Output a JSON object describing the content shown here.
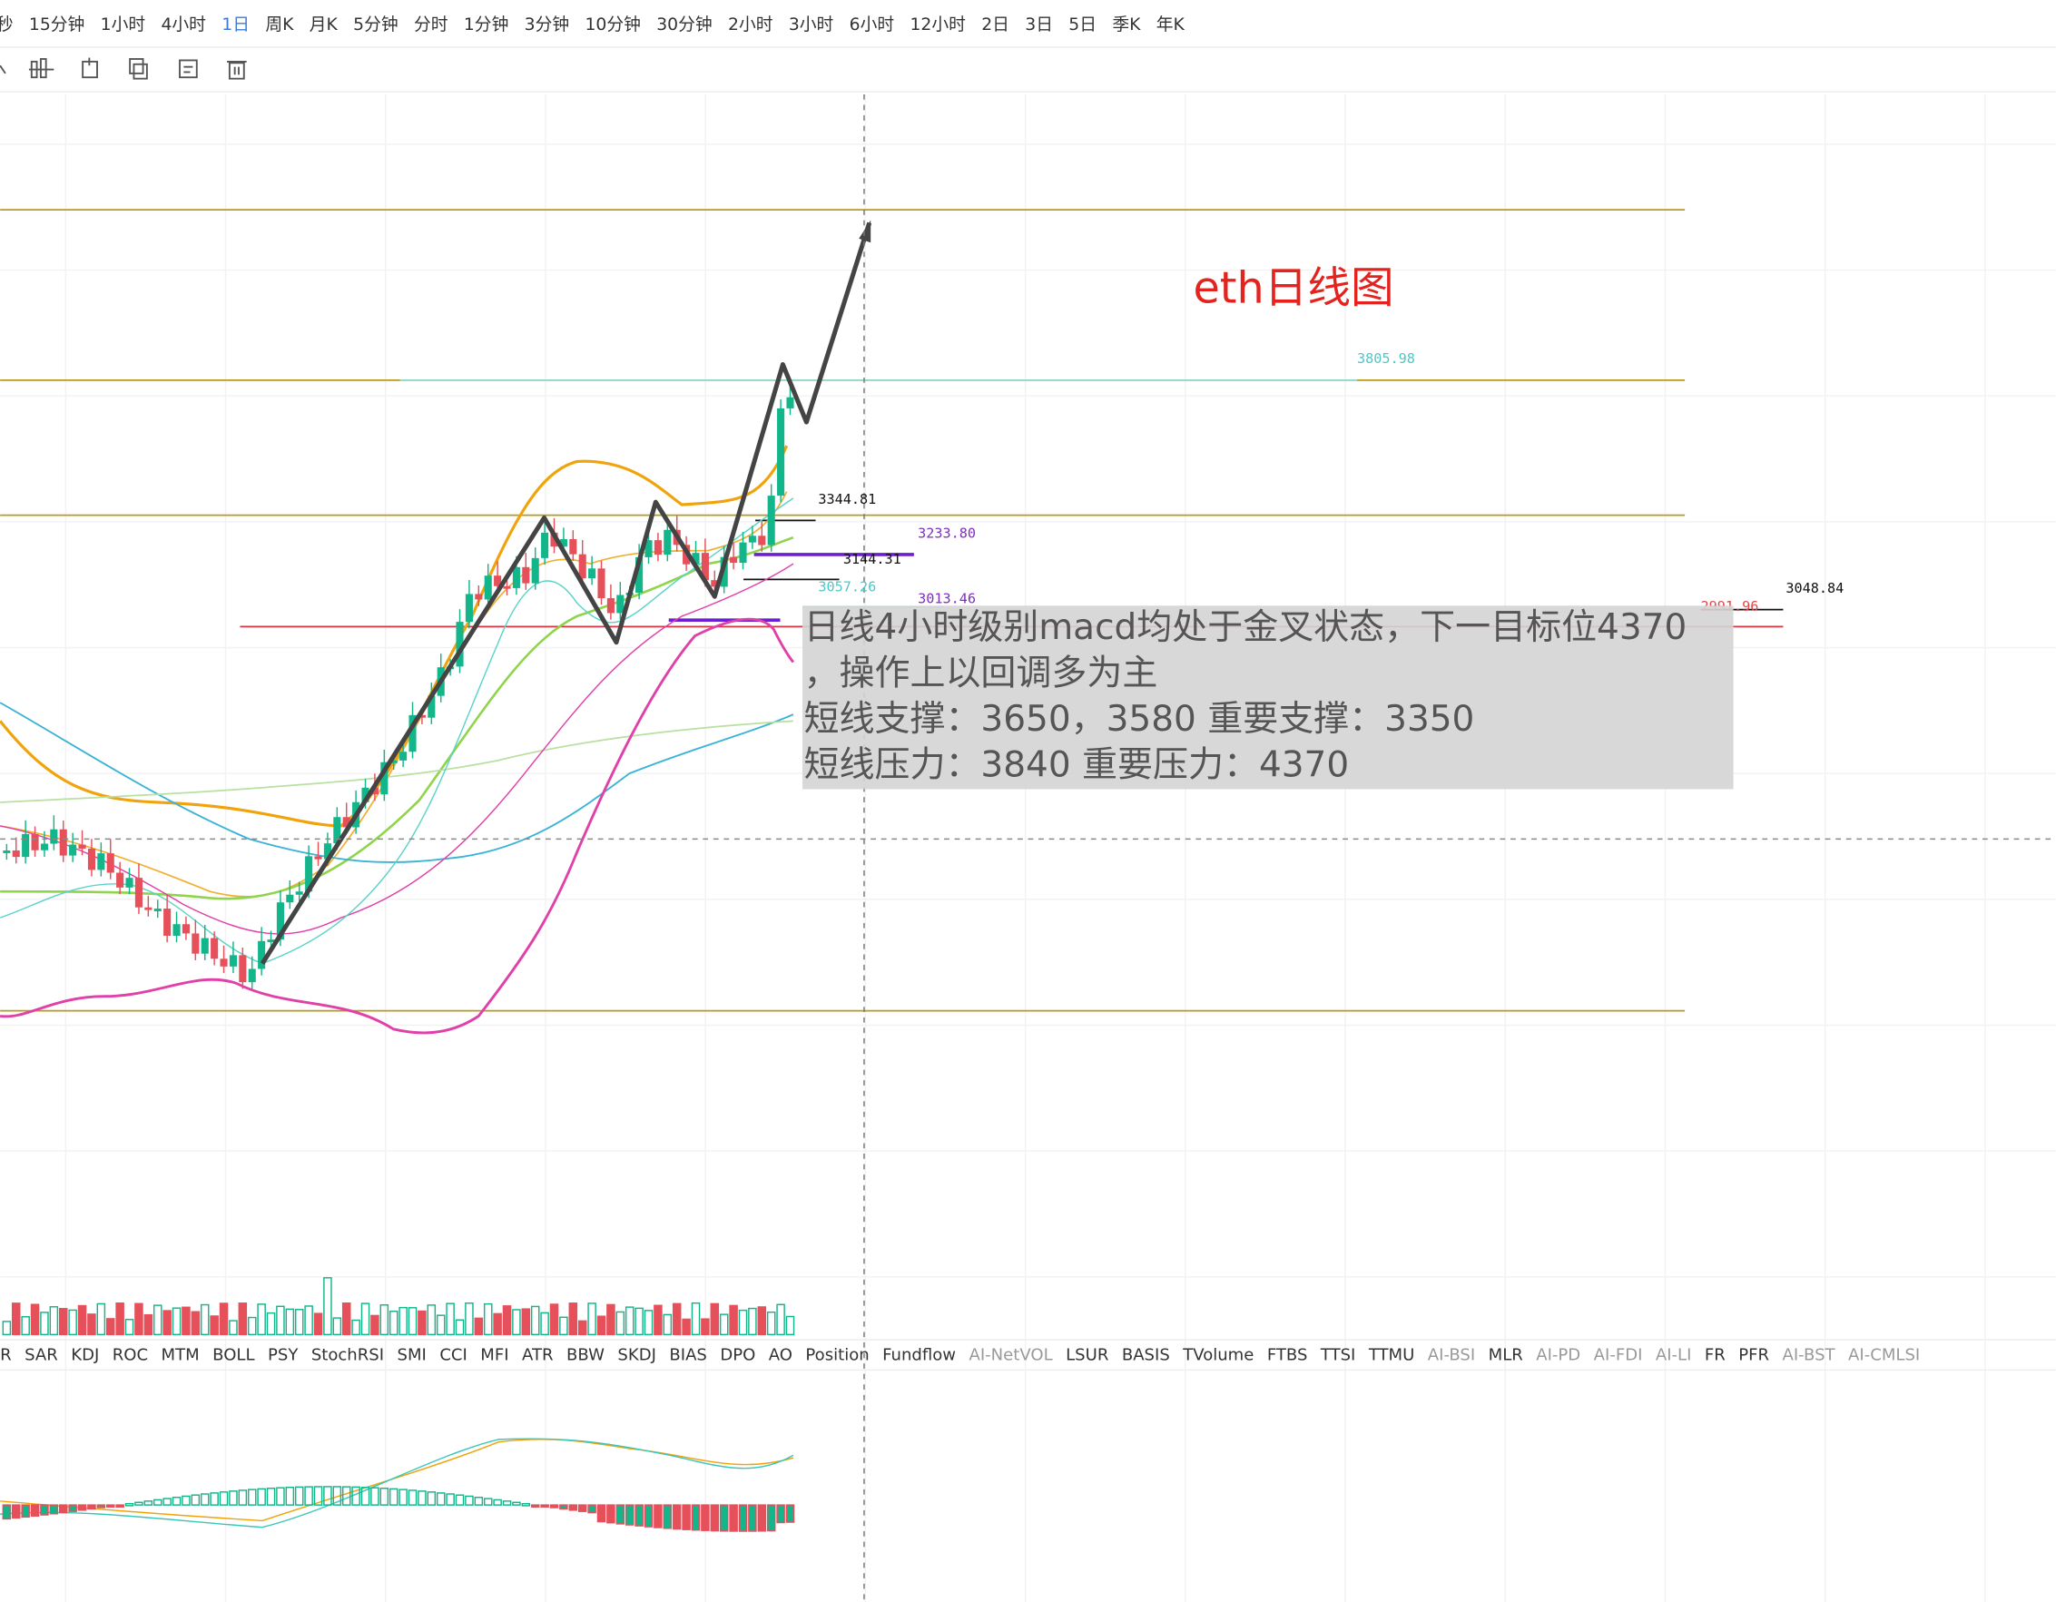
{
  "toolbar": {
    "intervals": [
      "秒",
      "15分钟",
      "1小时",
      "4小时",
      "1日",
      "周K",
      "月K",
      "5分钟",
      "分时",
      "1分钟",
      "3分钟",
      "10分钟",
      "30分钟",
      "2小时",
      "3小时",
      "6小时",
      "12小时",
      "2日",
      "3日",
      "5日",
      "季K",
      "年K"
    ],
    "active": 4
  },
  "chart": {
    "title": "eth日线图",
    "price_labels": [
      {
        "text": "3805.98",
        "color": "#4fc7c7"
      },
      {
        "text": "3344.81",
        "color": "#111111"
      },
      {
        "text": "3233.80",
        "color": "#7b2fbf"
      },
      {
        "text": "3144.31",
        "color": "#111111"
      },
      {
        "text": "3057.26",
        "color": "#4fc7c7"
      },
      {
        "text": "3013.46",
        "color": "#7b2fbf"
      },
      {
        "text": "2991.96",
        "color": "#e04848"
      },
      {
        "text": "3048.84",
        "color": "#111111"
      }
    ],
    "annotation": [
      "日线4小时级别macd均处于金叉状态，下一目标位4370",
      "，操作上以回调多为主",
      "短线支撑：3650，3580   重要支撑：3350",
      "短线压力：3840    重要压力：4370"
    ]
  },
  "indicators": [
    "R",
    "SAR",
    "KDJ",
    "ROC",
    "MTM",
    "BOLL",
    "PSY",
    "StochRSI",
    "SMI",
    "CCI",
    "MFI",
    "ATR",
    "BBW",
    "SKDJ",
    "BIAS",
    "DPO",
    "AO",
    "Position",
    "Fundflow",
    "AI-NetVOL",
    "LSUR",
    "BASIS",
    "TVolume",
    "FTBS",
    "TTSI",
    "TTMU",
    "AI-BSI",
    "MLR",
    "AI-PD",
    "AI-FDI",
    "AI-LI",
    "FR",
    "PFR",
    "AI-BST",
    "AI-CMLSI"
  ]
}
